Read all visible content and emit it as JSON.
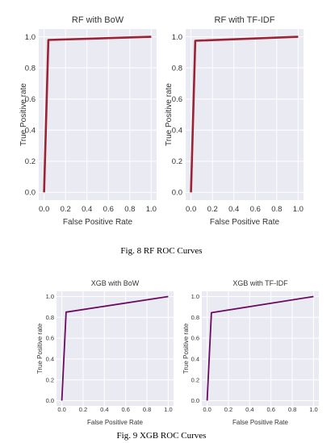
{
  "chart_data": [
    {
      "type": "line",
      "title": "RF with BoW",
      "xlabel": "False Positive Rate",
      "ylabel": "True Positive rate",
      "xlim": [
        0,
        1
      ],
      "ylim": [
        0,
        1
      ],
      "xticks": [
        "0.0",
        "0.2",
        "0.4",
        "0.6",
        "0.8",
        "1.0"
      ],
      "yticks": [
        "0.0",
        "0.2",
        "0.4",
        "0.6",
        "0.8",
        "1.0"
      ],
      "grid": true,
      "color": "#9b2335",
      "series": [
        {
          "x": [
            0.0,
            0.04,
            1.0
          ],
          "y": [
            0.0,
            0.98,
            1.0
          ]
        }
      ]
    },
    {
      "type": "line",
      "title": "RF with TF-IDF",
      "xlabel": "False Positive Rate",
      "ylabel": "True Positive rate",
      "xlim": [
        0,
        1
      ],
      "ylim": [
        0,
        1
      ],
      "xticks": [
        "0.0",
        "0.2",
        "0.4",
        "0.6",
        "0.8",
        "1.0"
      ],
      "yticks": [
        "0.0",
        "0.2",
        "0.4",
        "0.6",
        "0.8",
        "1.0"
      ],
      "grid": true,
      "color": "#9b2335",
      "series": [
        {
          "x": [
            0.0,
            0.04,
            1.0
          ],
          "y": [
            0.0,
            0.975,
            1.0
          ]
        }
      ]
    },
    {
      "type": "line",
      "title": "XGB with BoW",
      "xlabel": "False Positive Rate",
      "ylabel": "True Positive rate",
      "xlim": [
        0,
        1
      ],
      "ylim": [
        0,
        1
      ],
      "xticks": [
        "0.0",
        "0.2",
        "0.4",
        "0.6",
        "0.8",
        "1.0"
      ],
      "yticks": [
        "0.0",
        "0.2",
        "0.4",
        "0.6",
        "0.8",
        "1.0"
      ],
      "grid": true,
      "color": "#6a0a62",
      "series": [
        {
          "x": [
            0.0,
            0.04,
            1.0
          ],
          "y": [
            0.0,
            0.85,
            1.0
          ]
        }
      ]
    },
    {
      "type": "line",
      "title": "XGB with TF-IDF",
      "xlabel": "False Positive Rate",
      "ylabel": "True Positive rate",
      "xlim": [
        0,
        1
      ],
      "ylim": [
        0,
        1
      ],
      "xticks": [
        "0.0",
        "0.2",
        "0.4",
        "0.6",
        "0.8",
        "1.0"
      ],
      "yticks": [
        "0.0",
        "0.2",
        "0.4",
        "0.6",
        "0.8",
        "1.0"
      ],
      "grid": true,
      "color": "#6a0a62",
      "series": [
        {
          "x": [
            0.0,
            0.04,
            1.0
          ],
          "y": [
            0.0,
            0.845,
            1.0
          ]
        }
      ]
    }
  ],
  "captions": {
    "fig8": "Fig. 8 RF ROC Curves",
    "fig9": "Fig. 9 XGB ROC Curves"
  },
  "colors": {
    "plot_background": "#eaeaf2",
    "grid": "#ffffff"
  }
}
